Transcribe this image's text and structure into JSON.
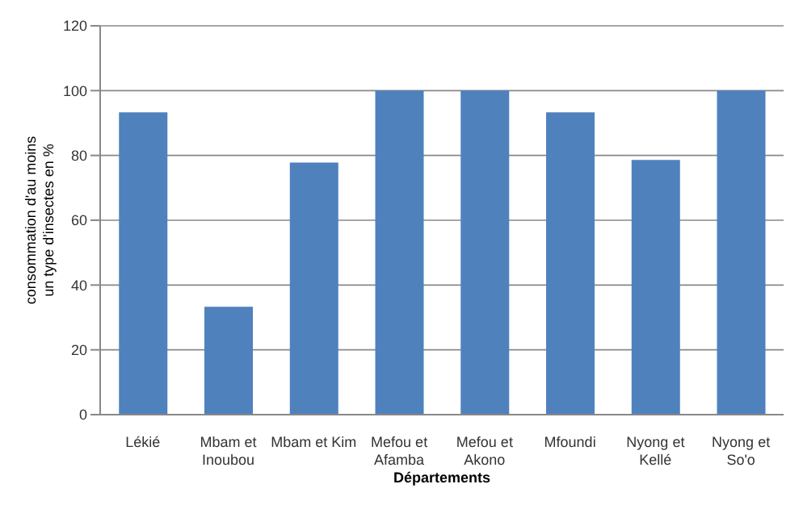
{
  "chart_data": {
    "type": "bar",
    "xlabel": "Départements",
    "ylabel": "consommation d'au moins un type d'insectes en %",
    "categories": [
      "Lékié",
      "Mbam et Inoubou",
      "Mbam et Kim",
      "Mefou et Afamba",
      "Mefou et Akono",
      "Mfoundi",
      "Nyong et Kellé",
      "Nyong et So'o"
    ],
    "values": [
      93.3,
      33.3,
      77.8,
      100,
      100,
      93.3,
      78.6,
      100
    ],
    "color": "#4f81bd",
    "ylim": [
      0,
      120
    ],
    "yticks": [
      0,
      20,
      40,
      60,
      80,
      100,
      120
    ],
    "grid": "y"
  }
}
